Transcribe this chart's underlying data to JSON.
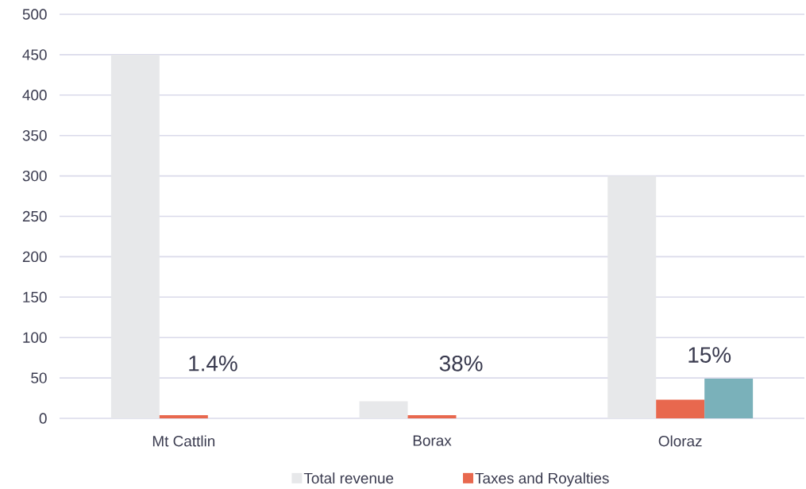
{
  "chart_data": {
    "type": "bar",
    "categories": [
      "Mt Cattlin",
      "Borax",
      "Oloraz"
    ],
    "series": [
      {
        "name": "Total revenue",
        "color": "#e7e8ea",
        "values": [
          450,
          21,
          300
        ]
      },
      {
        "name": "Taxes and Royalties",
        "color": "#e8684e",
        "values": [
          4,
          4,
          23
        ]
      },
      {
        "color": "#7ab1ba",
        "values": [
          null,
          null,
          49
        ]
      }
    ],
    "ylim": [
      0,
      500
    ],
    "yticks": [
      0,
      50,
      100,
      150,
      200,
      250,
      300,
      350,
      400,
      450,
      500
    ],
    "grid": "y",
    "legend": "bottom",
    "annotations": [
      "1.4%",
      "38%",
      "15%"
    ]
  }
}
